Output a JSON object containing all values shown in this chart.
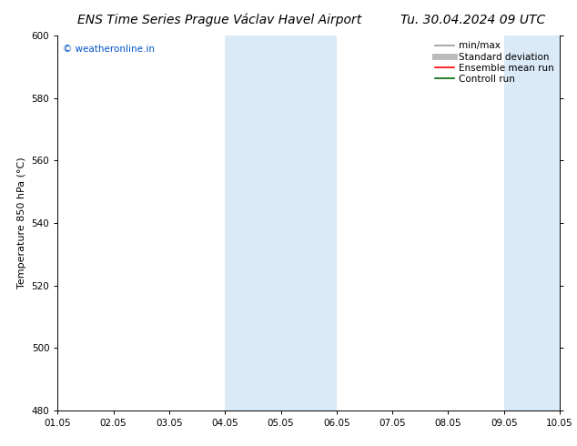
{
  "title_left": "ENS Time Series Prague Václav Havel Airport",
  "title_right": "Tu. 30.04.2024 09 UTC",
  "ylabel": "Temperature 850 hPa (°C)",
  "ylim": [
    480,
    600
  ],
  "yticks": [
    480,
    500,
    520,
    540,
    560,
    580,
    600
  ],
  "xlim": [
    0,
    9
  ],
  "xtick_labels": [
    "01.05",
    "02.05",
    "03.05",
    "04.05",
    "05.05",
    "06.05",
    "07.05",
    "08.05",
    "09.05",
    "10.05"
  ],
  "xtick_positions": [
    0,
    1,
    2,
    3,
    4,
    5,
    6,
    7,
    8,
    9
  ],
  "shaded_bands": [
    {
      "x_start": 3.0,
      "x_end": 5.0
    },
    {
      "x_start": 8.0,
      "x_end": 9.0
    }
  ],
  "band_color": "#daeaf7",
  "background_color": "#ffffff",
  "watermark_text": "© weatheronline.in",
  "watermark_color": "#0055cc",
  "legend_entries": [
    {
      "label": "min/max",
      "color": "#999999",
      "lw": 1.2,
      "type": "line"
    },
    {
      "label": "Standard deviation",
      "color": "#bbbbbb",
      "lw": 5,
      "type": "line"
    },
    {
      "label": "Ensemble mean run",
      "color": "#ff0000",
      "lw": 1.2,
      "type": "line"
    },
    {
      "label": "Controll run",
      "color": "#006600",
      "lw": 1.2,
      "type": "line"
    }
  ],
  "title_fontsize": 10,
  "ylabel_fontsize": 8,
  "tick_fontsize": 7.5,
  "legend_fontsize": 7.5,
  "watermark_fontsize": 7.5
}
